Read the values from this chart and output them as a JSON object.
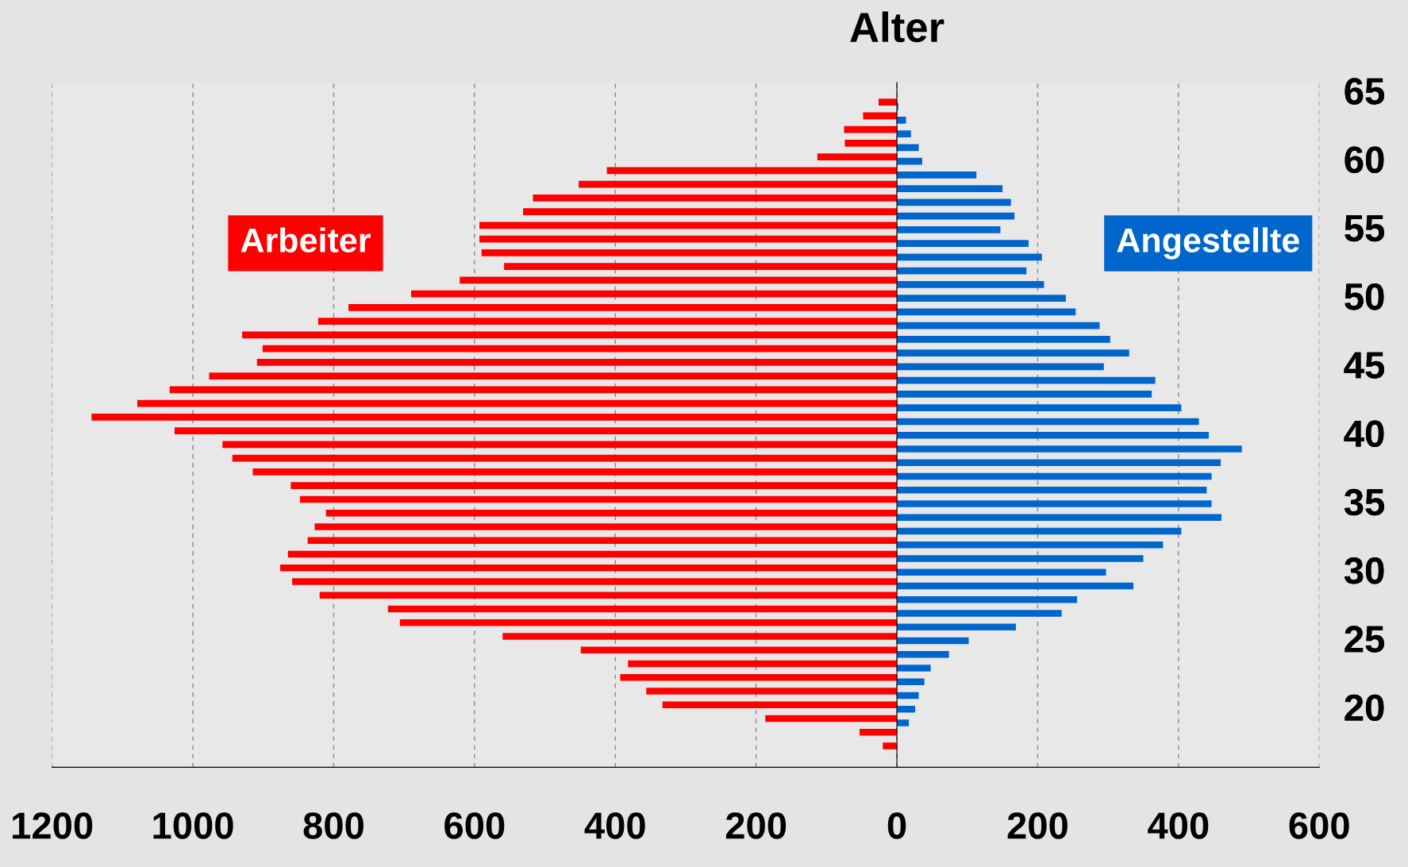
{
  "chart_data": {
    "type": "bar",
    "orientation": "horizontal",
    "ylabel": "Alter",
    "x": [
      64,
      63,
      62,
      61,
      60,
      59,
      58,
      57,
      56,
      55,
      54,
      53,
      52,
      51,
      50,
      49,
      48,
      47,
      46,
      45,
      44,
      43,
      42,
      41,
      40,
      39,
      38,
      37,
      36,
      35,
      34,
      33,
      32,
      31,
      30,
      29,
      28,
      27,
      26,
      25,
      24,
      23,
      22,
      21,
      20,
      19,
      18,
      17
    ],
    "series": [
      {
        "name": "Arbeiter",
        "color": "#ff0000",
        "values": [
          -26,
          -48,
          -75,
          -74,
          -113,
          -412,
          -452,
          -517,
          -531,
          -593,
          -593,
          -590,
          -558,
          -621,
          -690,
          -779,
          -822,
          -930,
          -901,
          -909,
          -977,
          -1033,
          -1079,
          -1144,
          -1026,
          -958,
          -944,
          -915,
          -861,
          -848,
          -811,
          -827,
          -837,
          -865,
          -876,
          -859,
          -820,
          -723,
          -706,
          -560,
          -449,
          -382,
          -393,
          -356,
          -333,
          -187,
          -53,
          -20
        ]
      },
      {
        "name": "Angestellte",
        "color": "#0066cc",
        "values": [
          2,
          13,
          20,
          31,
          36,
          113,
          150,
          162,
          167,
          147,
          187,
          206,
          184,
          209,
          240,
          254,
          288,
          303,
          330,
          294,
          367,
          362,
          404,
          429,
          443,
          490,
          460,
          447,
          440,
          447,
          461,
          404,
          378,
          350,
          297,
          336,
          256,
          234,
          169,
          102,
          74,
          48,
          39,
          31,
          26,
          17,
          null,
          null
        ]
      }
    ],
    "xlim": [
      -1200,
      600
    ],
    "xticks": [
      {
        "value": -1200,
        "label": "1200"
      },
      {
        "value": -1000,
        "label": "1000"
      },
      {
        "value": -800,
        "label": "800"
      },
      {
        "value": -600,
        "label": "600"
      },
      {
        "value": -400,
        "label": "400"
      },
      {
        "value": -200,
        "label": "200"
      },
      0,
      200,
      400,
      600
    ],
    "ylim": [
      15.6,
      65.6
    ],
    "yticks": [
      20,
      25,
      30,
      35,
      40,
      45,
      50,
      55,
      60,
      65
    ],
    "grid": "x"
  }
}
